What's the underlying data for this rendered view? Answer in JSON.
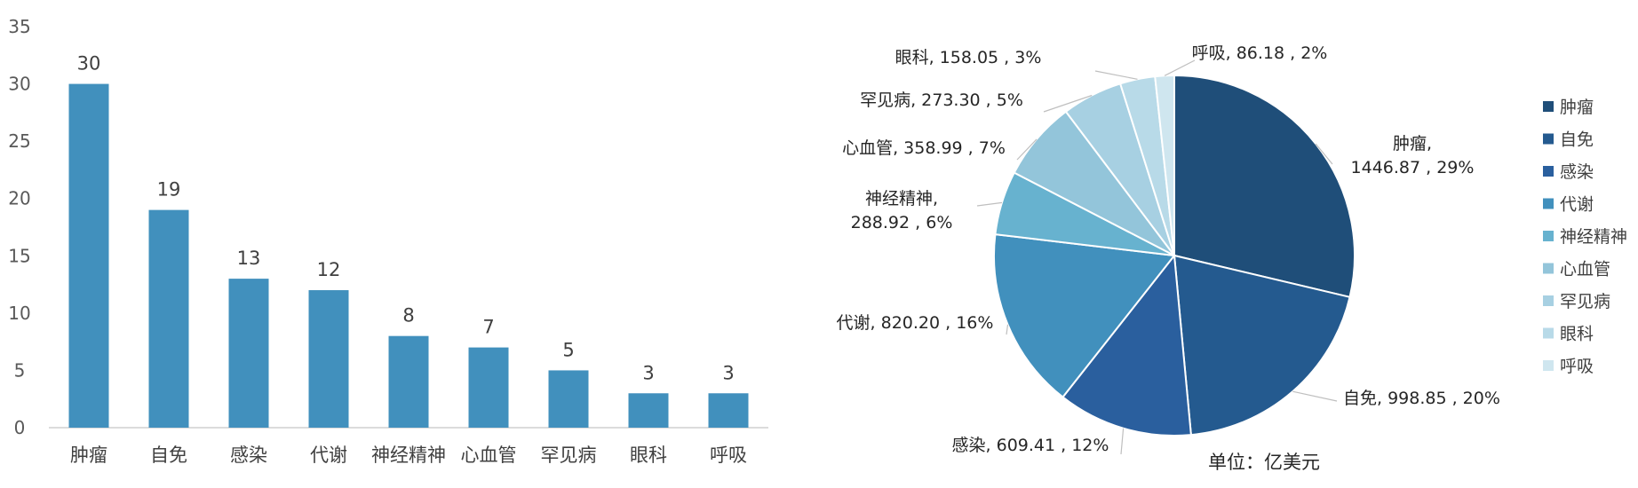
{
  "chart_data": [
    {
      "type": "bar",
      "categories": [
        "肿瘤",
        "自免",
        "感染",
        "代谢",
        "神经精神",
        "心血管",
        "罕见病",
        "眼科",
        "呼吸"
      ],
      "values": [
        30,
        19,
        13,
        12,
        8,
        7,
        5,
        3,
        3
      ],
      "ylim": [
        0,
        35
      ],
      "yticks": [
        0,
        5,
        10,
        15,
        20,
        25,
        30,
        35
      ],
      "color": "#4190bd",
      "grid": false
    },
    {
      "type": "pie",
      "unit_label": "单位：亿美元",
      "legend_position": "right",
      "slices": [
        {
          "name": "肿瘤",
          "value": 1446.87,
          "value_text": "1446.87",
          "pct": "29%",
          "color": "#1f4e79"
        },
        {
          "name": "自免",
          "value": 998.85,
          "value_text": "998.85",
          "pct": "20%",
          "color": "#245a8f"
        },
        {
          "name": "感染",
          "value": 609.41,
          "value_text": "609.41",
          "pct": "12%",
          "color": "#2a5f9e"
        },
        {
          "name": "代谢",
          "value": 820.2,
          "value_text": "820.20",
          "pct": "16%",
          "color": "#4190bd"
        },
        {
          "name": "神经精神",
          "value": 288.92,
          "value_text": "288.92",
          "pct": "6%",
          "color": "#67b2cf"
        },
        {
          "name": "心血管",
          "value": 358.99,
          "value_text": "358.99",
          "pct": "7%",
          "color": "#93c5da"
        },
        {
          "name": "罕见病",
          "value": 273.3,
          "value_text": "273.30",
          "pct": "5%",
          "color": "#a7d0e2"
        },
        {
          "name": "眼科",
          "value": 158.05,
          "value_text": "158.05",
          "pct": "3%",
          "color": "#b8dae8"
        },
        {
          "name": "呼吸",
          "value": 86.18,
          "value_text": "86.18",
          "pct": "2%",
          "color": "#cfe6ef"
        }
      ]
    }
  ]
}
